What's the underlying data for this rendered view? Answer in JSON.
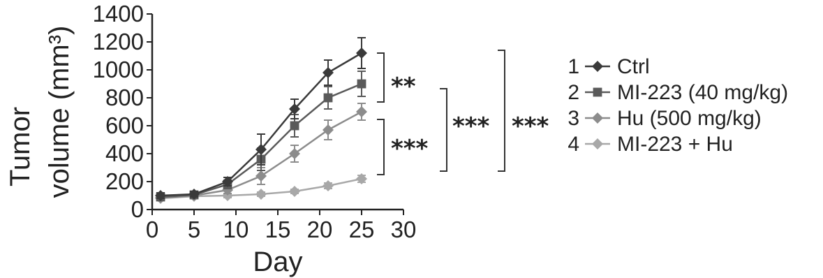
{
  "chart_data": {
    "type": "line",
    "ylabel_line1": "Tumor",
    "ylabel_line2": "volume (mm³)",
    "xlabel": "Day",
    "xlim": [
      0,
      30
    ],
    "ylim": [
      0,
      1400
    ],
    "xticks": [
      "0",
      "5",
      "10",
      "15",
      "20",
      "25",
      "30"
    ],
    "yticks": [
      "0",
      "200",
      "400",
      "600",
      "800",
      "1000",
      "1200",
      "1400"
    ],
    "x": [
      1,
      5,
      9,
      13,
      17,
      21,
      25
    ],
    "series": [
      {
        "id": "1",
        "name": "Ctrl",
        "color": "#3a3a3a",
        "marker": "diamond",
        "values": [
          100,
          110,
          200,
          430,
          720,
          980,
          1120
        ],
        "errors": [
          20,
          20,
          30,
          110,
          70,
          90,
          110
        ]
      },
      {
        "id": "2",
        "name": "MI-223 (40 mg/kg)",
        "color": "#5a5a5a",
        "marker": "square",
        "values": [
          90,
          105,
          180,
          360,
          600,
          800,
          900
        ],
        "errors": [
          20,
          20,
          30,
          80,
          80,
          80,
          90
        ]
      },
      {
        "id": "3",
        "name": "Hu (500 mg/kg)",
        "color": "#8c8c8c",
        "marker": "diamond",
        "values": [
          85,
          100,
          140,
          240,
          400,
          570,
          700
        ],
        "errors": [
          15,
          15,
          25,
          60,
          60,
          70,
          60
        ]
      },
      {
        "id": "4",
        "name": "MI-223 + Hu",
        "color": "#a8a8a8",
        "marker": "diamond",
        "values": [
          80,
          95,
          100,
          110,
          130,
          170,
          220
        ],
        "errors": [
          10,
          10,
          15,
          15,
          15,
          20,
          25
        ]
      }
    ],
    "significance": [
      {
        "label": "**",
        "between": "1-2"
      },
      {
        "label": "***",
        "between": "2-4"
      },
      {
        "label": "***",
        "between": "2-3"
      },
      {
        "label": "***",
        "between": "1-4"
      }
    ]
  }
}
